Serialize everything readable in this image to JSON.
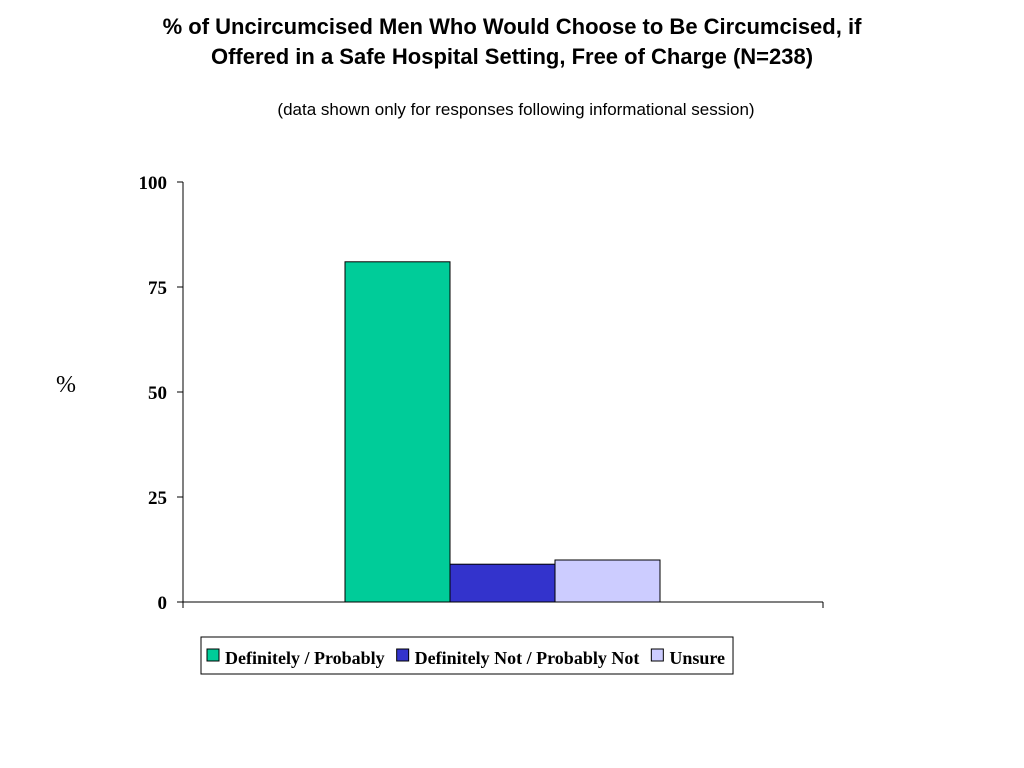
{
  "chart_data": {
    "type": "bar",
    "title": "% of Uncircumcised Men Who Would Choose to Be Circumcised, if\nOffered in a Safe Hospital Setting, Free of Charge (N=238)",
    "subtitle": "(data shown only for responses following informational session)",
    "ylabel": "%",
    "xlabel": "",
    "ylim": [
      0,
      100
    ],
    "yticks": [
      0,
      25,
      50,
      75,
      100
    ],
    "grid": false,
    "legend_position": "bottom",
    "series": [
      {
        "name": "Definitely / Probably",
        "color": "#00CC99",
        "values": [
          81
        ]
      },
      {
        "name": "Definitely Not / Probably Not",
        "color": "#3333CC",
        "values": [
          9
        ]
      },
      {
        "name": "Unsure",
        "color": "#CCCCFF",
        "values": [
          10
        ]
      }
    ]
  }
}
